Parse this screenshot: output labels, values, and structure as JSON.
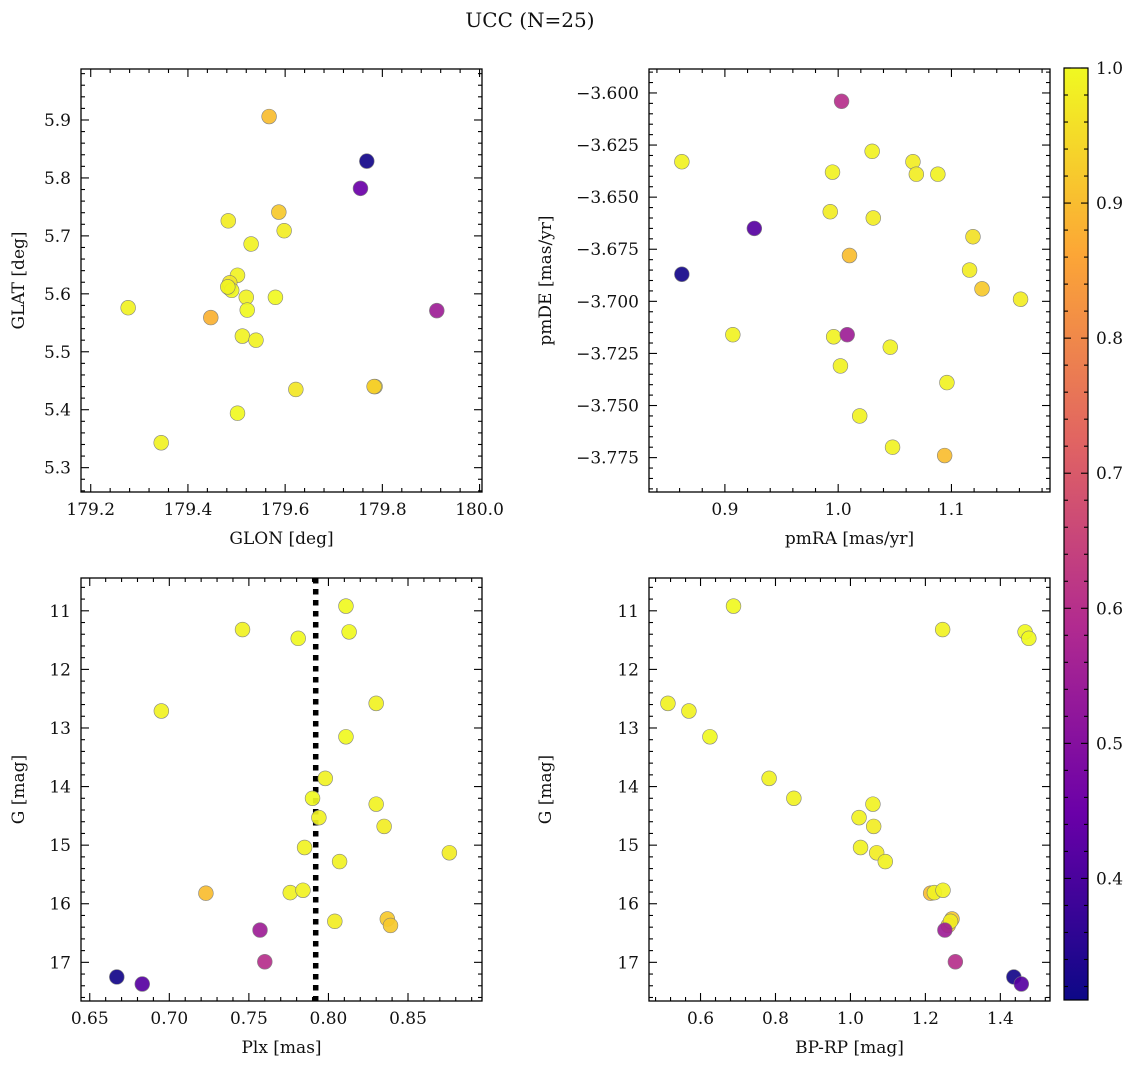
{
  "title": "UCC (N=25)",
  "colors": {
    "member_line": "#000000",
    "colormap": [
      "#0d0887",
      "#6a00a8",
      "#b12a90",
      "#e16462",
      "#fca636",
      "#f0f921"
    ]
  },
  "chart_data": [
    {
      "type": "scatter",
      "name": "glon-glat",
      "xlabel": "GLON [deg]",
      "ylabel": "GLAT [deg]",
      "xlim": [
        179.18,
        180.005
      ],
      "ylim": [
        5.258,
        5.988
      ],
      "xticks": [
        179.2,
        179.4,
        179.6,
        179.8,
        180.0
      ],
      "xtick_labels": [
        "179.2",
        "179.4",
        "179.6",
        "179.8",
        "180.0"
      ],
      "yticks": [
        5.3,
        5.4,
        5.5,
        5.6,
        5.7,
        5.8,
        5.9
      ],
      "ytick_labels": [
        "5.3",
        "5.4",
        "5.5",
        "5.6",
        "5.7",
        "5.8",
        "5.9"
      ],
      "y_inverted": false,
      "grid": false,
      "x": [
        179.567,
        179.768,
        179.755,
        179.587,
        179.483,
        179.598,
        179.53,
        179.502,
        179.485,
        179.486,
        179.49,
        179.52,
        179.58,
        179.277,
        179.447,
        179.522,
        179.912,
        179.512,
        179.54,
        179.622,
        179.785,
        179.783,
        179.502,
        179.345,
        179.482
      ],
      "y": [
        5.906,
        5.829,
        5.782,
        5.741,
        5.726,
        5.709,
        5.686,
        5.632,
        5.61,
        5.619,
        5.606,
        5.594,
        5.594,
        5.576,
        5.559,
        5.572,
        5.571,
        5.527,
        5.52,
        5.435,
        5.44,
        5.44,
        5.394,
        5.343,
        5.612
      ],
      "color_value": [
        0.9,
        0.32,
        0.45,
        0.92,
        0.98,
        0.98,
        0.99,
        0.99,
        0.98,
        0.97,
        1.0,
        0.99,
        1.0,
        0.99,
        0.88,
        1.0,
        0.55,
        0.99,
        0.99,
        0.97,
        0.97,
        0.93,
        1.0,
        0.99,
        0.99
      ]
    },
    {
      "type": "scatter",
      "name": "pm",
      "xlabel": "pmRA [mas/yr]",
      "ylabel": "pmDE [mas/yr]",
      "xlim": [
        0.833,
        1.187
      ],
      "ylim": [
        -3.7915,
        -3.5885
      ],
      "xticks": [
        0.9,
        1.0,
        1.1
      ],
      "xtick_labels": [
        "0.9",
        "1.0",
        "1.1"
      ],
      "yticks": [
        -3.775,
        -3.75,
        -3.725,
        -3.7,
        -3.675,
        -3.65,
        -3.625,
        -3.6
      ],
      "ytick_labels": [
        "−3.775",
        "−3.750",
        "−3.725",
        "−3.700",
        "−3.675",
        "−3.650",
        "−3.625",
        "−3.600"
      ],
      "y_inverted": false,
      "grid": false,
      "x": [
        1.003,
        0.862,
        1.03,
        1.066,
        0.995,
        1.069,
        1.088,
        0.993,
        1.031,
        0.926,
        1.119,
        1.01,
        0.862,
        1.116,
        1.127,
        1.161,
        0.907,
        0.996,
        1.008,
        1.046,
        1.002,
        1.096,
        1.019,
        1.048,
        1.094
      ],
      "y": [
        -3.604,
        -3.633,
        -3.628,
        -3.633,
        -3.638,
        -3.639,
        -3.639,
        -3.657,
        -3.66,
        -3.665,
        -3.669,
        -3.678,
        -3.687,
        -3.685,
        -3.694,
        -3.699,
        -3.716,
        -3.717,
        -3.716,
        -3.722,
        -3.731,
        -3.739,
        -3.755,
        -3.77,
        -3.774
      ],
      "color_value": [
        0.6,
        0.99,
        0.99,
        0.98,
        0.99,
        0.98,
        0.99,
        0.98,
        0.98,
        0.42,
        0.96,
        0.9,
        0.32,
        0.98,
        0.92,
        0.98,
        0.99,
        0.99,
        0.55,
        0.99,
        0.99,
        0.99,
        0.99,
        0.99,
        0.9
      ]
    },
    {
      "type": "scatter",
      "name": "plx-g",
      "xlabel": "Plx [mas]",
      "ylabel": "G [mag]",
      "xlim": [
        0.6445,
        0.8965
      ],
      "ylim": [
        17.66,
        10.44
      ],
      "xticks": [
        0.65,
        0.7,
        0.75,
        0.8,
        0.85
      ],
      "xtick_labels": [
        "0.65",
        "0.70",
        "0.75",
        "0.80",
        "0.85"
      ],
      "yticks": [
        11,
        12,
        13,
        14,
        15,
        16,
        17
      ],
      "ytick_labels": [
        "11",
        "12",
        "13",
        "14",
        "15",
        "16",
        "17"
      ],
      "y_inverted": true,
      "grid": false,
      "vline": 0.792,
      "x": [
        0.811,
        0.746,
        0.813,
        0.781,
        0.695,
        0.83,
        0.811,
        0.798,
        0.79,
        0.83,
        0.794,
        0.835,
        0.785,
        0.876,
        0.807,
        0.723,
        0.776,
        0.784,
        0.804,
        0.837,
        0.839,
        0.757,
        0.76,
        0.667,
        0.683
      ],
      "y": [
        10.92,
        11.32,
        11.36,
        11.47,
        12.71,
        12.58,
        13.15,
        13.86,
        14.2,
        14.3,
        14.53,
        14.68,
        15.04,
        15.13,
        15.28,
        15.82,
        15.81,
        15.77,
        16.3,
        16.26,
        16.37,
        16.45,
        16.99,
        17.25,
        17.37
      ],
      "color_value": [
        1.0,
        0.99,
        1.0,
        1.0,
        0.99,
        0.99,
        1.0,
        0.99,
        1.0,
        0.99,
        0.99,
        0.98,
        0.99,
        0.98,
        0.99,
        0.9,
        0.99,
        0.99,
        0.98,
        0.92,
        0.92,
        0.55,
        0.6,
        0.32,
        0.42
      ]
    },
    {
      "type": "scatter",
      "name": "cmd",
      "xlabel": "BP-RP [mag]",
      "ylabel": "G [mag]",
      "xlim": [
        0.4625,
        1.5325
      ],
      "ylim": [
        17.66,
        10.44
      ],
      "xticks": [
        0.6,
        0.8,
        1.0,
        1.2,
        1.4
      ],
      "xtick_labels": [
        "0.6",
        "0.8",
        "1.0",
        "1.2",
        "1.4"
      ],
      "yticks": [
        11,
        12,
        13,
        14,
        15,
        16,
        17
      ],
      "ytick_labels": [
        "11",
        "12",
        "13",
        "14",
        "15",
        "16",
        "17"
      ],
      "y_inverted": true,
      "grid": false,
      "x": [
        0.688,
        1.246,
        1.466,
        1.476,
        0.513,
        0.569,
        0.625,
        0.783,
        0.849,
        1.06,
        1.023,
        1.062,
        1.027,
        1.07,
        1.093,
        1.214,
        1.224,
        1.247,
        1.271,
        1.261,
        1.267,
        1.252,
        1.28,
        1.436,
        1.456
      ],
      "y": [
        10.92,
        11.32,
        11.36,
        11.47,
        12.58,
        12.71,
        13.15,
        13.86,
        14.2,
        14.3,
        14.53,
        14.68,
        15.04,
        15.13,
        15.28,
        15.82,
        15.81,
        15.77,
        16.26,
        16.37,
        16.3,
        16.45,
        16.99,
        17.25,
        17.37
      ],
      "color_value": [
        1.0,
        0.99,
        1.0,
        1.0,
        0.99,
        0.99,
        1.0,
        0.99,
        0.99,
        0.99,
        0.99,
        0.98,
        0.99,
        0.98,
        0.99,
        0.9,
        0.99,
        0.99,
        0.92,
        0.92,
        0.98,
        0.55,
        0.6,
        0.32,
        0.42
      ]
    }
  ],
  "colorbar": {
    "vmin": 0.31,
    "vmax": 1.0,
    "ticks": [
      0.4,
      0.5,
      0.6,
      0.7,
      0.8,
      0.9,
      1.0
    ],
    "tick_labels": [
      "0.4",
      "0.5",
      "0.6",
      "0.7",
      "0.8",
      "0.9",
      "1.0"
    ]
  }
}
